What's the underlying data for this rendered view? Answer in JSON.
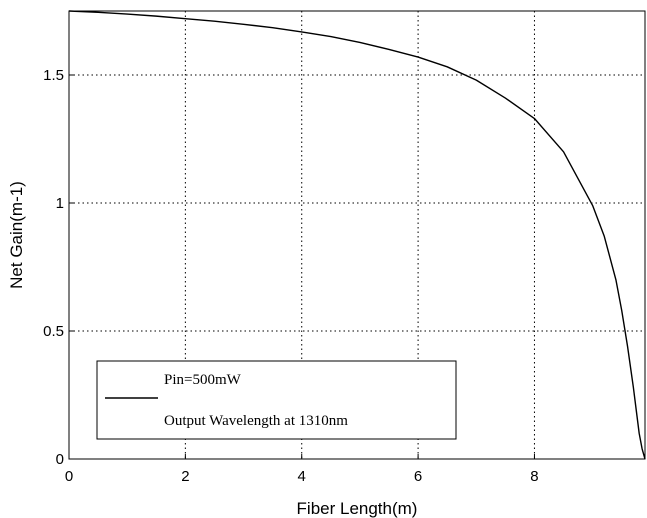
{
  "chart_data": {
    "type": "line",
    "title": "",
    "xlabel": "Fiber Length(m)",
    "ylabel": "Net Gain(m-1)",
    "xlim": [
      0,
      9.9
    ],
    "ylim": [
      0,
      1.75
    ],
    "xticks": [
      0,
      2,
      4,
      6,
      8
    ],
    "yticks": [
      0,
      0.5,
      1,
      1.5
    ],
    "xtick_labels": [
      "0",
      "2",
      "4",
      "6",
      "8"
    ],
    "ytick_labels": [
      "0",
      "0.5",
      "1",
      "1.5"
    ],
    "grid": true,
    "grid_style": "dotted",
    "legend_position": "bottom-left",
    "legend_entries": [
      "Pin=500mW",
      "Output Wavelength at 1310nm"
    ],
    "series": [
      {
        "name": "Pin=500mW",
        "color": "#000000",
        "x": [
          0,
          0.5,
          1,
          1.5,
          2,
          2.5,
          3,
          3.5,
          4,
          4.5,
          5,
          5.5,
          6,
          6.5,
          7,
          7.5,
          8,
          8.5,
          9,
          9.2,
          9.4,
          9.5,
          9.6,
          9.7,
          9.75,
          9.8,
          9.85,
          9.9
        ],
        "y": [
          1.75,
          1.745,
          1.738,
          1.73,
          1.72,
          1.71,
          1.698,
          1.685,
          1.668,
          1.65,
          1.627,
          1.6,
          1.57,
          1.532,
          1.48,
          1.41,
          1.33,
          1.2,
          0.99,
          0.87,
          0.7,
          0.58,
          0.44,
          0.28,
          0.19,
          0.1,
          0.04,
          0.0
        ]
      }
    ]
  }
}
